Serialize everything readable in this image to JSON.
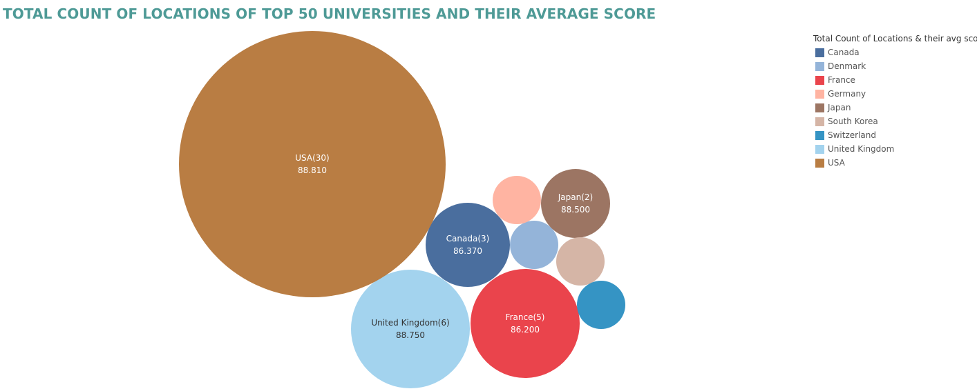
{
  "chart_data": {
    "type": "bubble",
    "title": "TOTAL COUNT OF LOCATIONS OF TOP 50 UNIVERSITIES AND THEIR AVERAGE SCORE",
    "legend": {
      "title": "Total Count of Locations & their avg score",
      "placement": "top-right"
    },
    "series": [
      {
        "name": "Canada",
        "count": 3,
        "avg_score": 86.37,
        "label": "Canada(3)",
        "value_label": "86.370",
        "color": "#4a6e9e"
      },
      {
        "name": "Denmark",
        "count": 1,
        "avg_score": null,
        "label": "",
        "value_label": "",
        "color": "#94b4d9"
      },
      {
        "name": "France",
        "count": 5,
        "avg_score": 86.2,
        "label": "France(5)",
        "value_label": "86.200",
        "color": "#ea444c"
      },
      {
        "name": "Germany",
        "count": 1,
        "avg_score": null,
        "label": "",
        "value_label": "",
        "color": "#ffb4a2"
      },
      {
        "name": "Japan",
        "count": 2,
        "avg_score": 88.5,
        "label": "Japan(2)",
        "value_label": "88.500",
        "color": "#9c7563"
      },
      {
        "name": "South Korea",
        "count": 1,
        "avg_score": null,
        "label": "",
        "value_label": "",
        "color": "#d5b5a6"
      },
      {
        "name": "Switzerland",
        "count": 1,
        "avg_score": null,
        "label": "",
        "value_label": "",
        "color": "#3594c4"
      },
      {
        "name": "United Kingdom",
        "count": 6,
        "avg_score": 88.75,
        "label": "United Kingdom(6)",
        "value_label": "88.750",
        "color": "#a3d3ee"
      },
      {
        "name": "USA",
        "count": 30,
        "avg_score": 88.81,
        "label": "USA(30)",
        "value_label": "88.810",
        "color": "#b97d43"
      }
    ]
  }
}
